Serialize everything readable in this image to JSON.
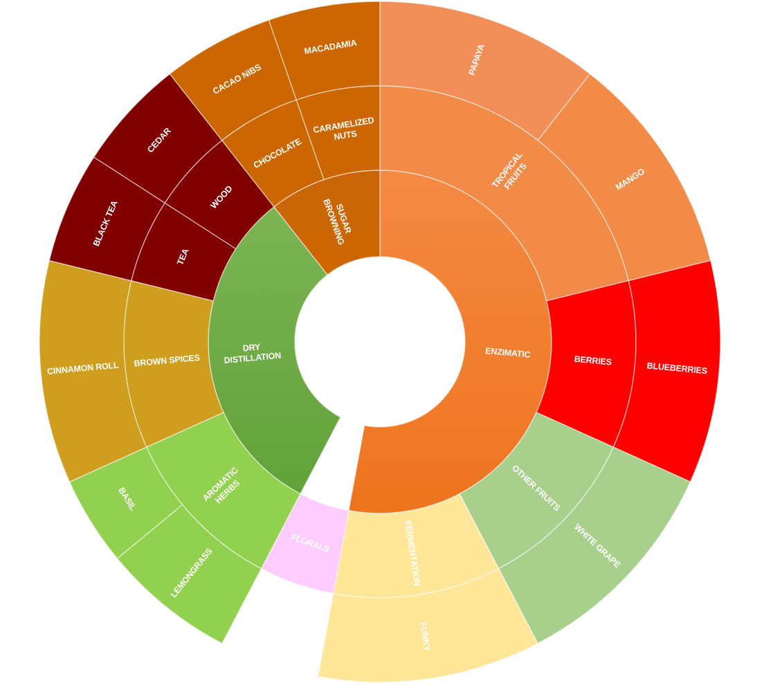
{
  "chart_data": {
    "type": "sunburst",
    "rings": [
      "Inner",
      "Middle",
      "Outer"
    ],
    "tree": [
      {
        "name": "ENZIMATIC",
        "color": "#F07F27",
        "value": 50,
        "children": [
          {
            "name": "TROPICAL\nFRUITS",
            "color": "#F28A48",
            "value": 20,
            "children": [
              {
                "name": "PAPAYA",
                "color": "#F28E58",
                "value": 10
              },
              {
                "name": "MANGO",
                "color": "#F28A48",
                "value": 10
              }
            ]
          },
          {
            "name": "BERRIES",
            "color": "#FF0000",
            "value": 10,
            "children": [
              {
                "name": "BLUEBERRIES",
                "color": "#FF0000",
                "value": 10
              }
            ]
          },
          {
            "name": "OTHER FRUITS",
            "color": "#A8D08C",
            "value": 10,
            "children": [
              {
                "name": "WHITE GRAPE",
                "color": "#A8D08C",
                "value": 10
              }
            ]
          },
          {
            "name": "FERMENTATION",
            "color": "#FFE699",
            "value": 10,
            "children": [
              {
                "name": "FUNKY",
                "color": "#FFE699",
                "value": 10
              }
            ]
          }
        ]
      },
      {
        "name": "FLORALS",
        "color": "#FFCCFF",
        "value": 4.5,
        "ring": 1,
        "textColor": "#ffffff"
      },
      {
        "name": "DRY\nDISTILLATION",
        "color": "#70AD47",
        "value": 30,
        "children": [
          {
            "name": "AROMATIC\nHERBS",
            "color": "#92D050",
            "value": 10,
            "children": [
              {
                "name": "LEMONGRASS",
                "color": "#92D050",
                "value": 6
              },
              {
                "name": "BASIL",
                "color": "#92D050",
                "value": 4
              }
            ]
          },
          {
            "name": "BROWN SPICES",
            "color": "#D09E1E",
            "value": 10,
            "children": [
              {
                "name": "CINNAMON ROLL",
                "color": "#D09E1E",
                "value": 10
              }
            ]
          },
          {
            "name": "TEA",
            "color": "#800000",
            "value": 5,
            "children": [
              {
                "name": "BLACK TEA",
                "color": "#800000",
                "value": 5
              }
            ]
          },
          {
            "name": "WOOD",
            "color": "#800000",
            "value": 5,
            "children": [
              {
                "name": "CEDAR",
                "color": "#800000",
                "value": 5
              }
            ]
          }
        ]
      },
      {
        "name": "SUGAR\nBROWNING",
        "color": "#CC6600",
        "value": 10,
        "children": [
          {
            "name": "CHOCOLATE",
            "color": "#CC6600",
            "value": 5,
            "children": [
              {
                "name": "CACAO NIBS",
                "color": "#CC6600",
                "value": 5
              }
            ]
          },
          {
            "name": "CARAMELIZED\nNUTS",
            "color": "#CC6600",
            "value": 5,
            "children": [
              {
                "name": "MACADAMIA",
                "color": "#CC6600",
                "value": 5
              }
            ]
          }
        ]
      }
    ]
  }
}
